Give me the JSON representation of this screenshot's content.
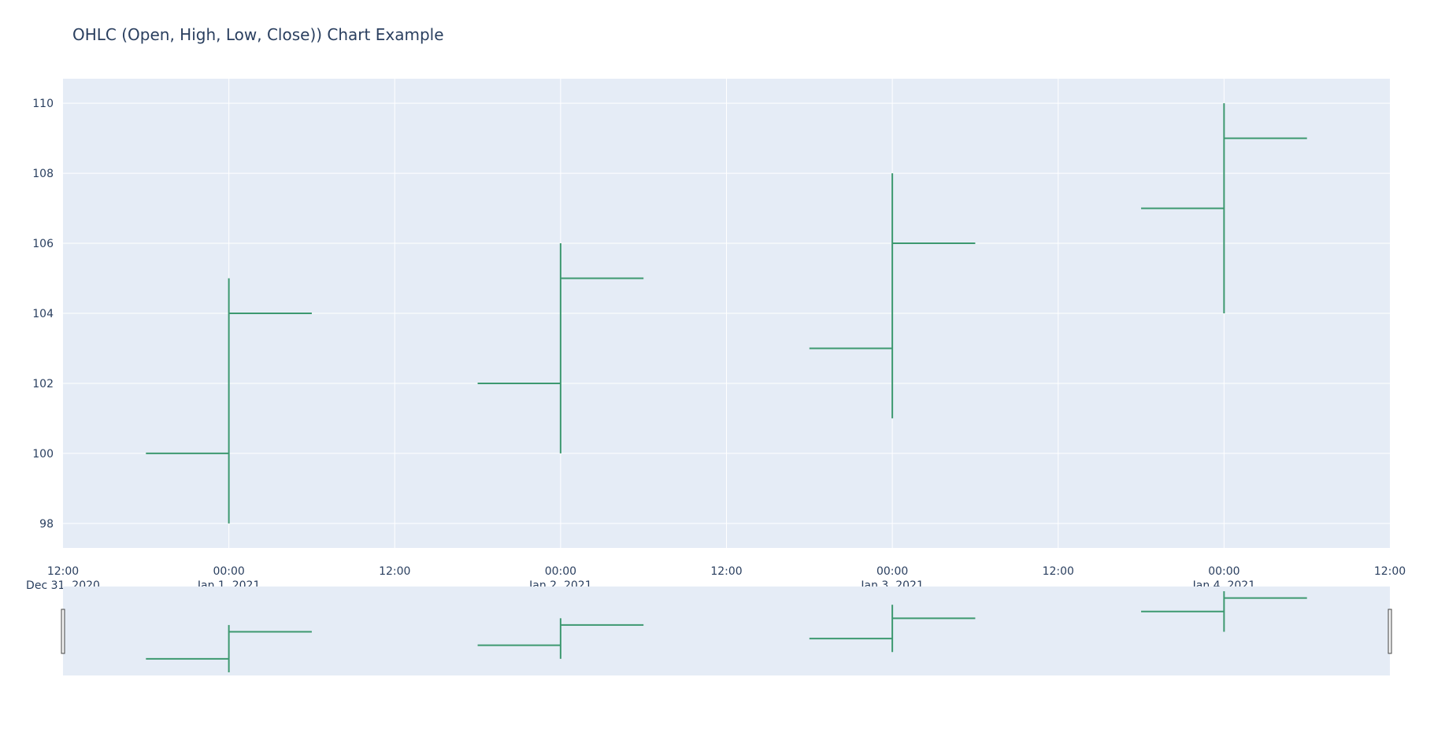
{
  "chart_data": {
    "type": "ohlc",
    "title": "OHLC (Open, High, Low, Close)) Chart Example",
    "x": [
      "2021-01-01",
      "2021-01-02",
      "2021-01-03",
      "2021-01-04"
    ],
    "open": [
      100,
      102,
      103,
      107
    ],
    "high": [
      105,
      106,
      108,
      110
    ],
    "low": [
      98,
      100,
      101,
      104
    ],
    "close": [
      104,
      105,
      106,
      109
    ],
    "xlim": [
      "2020-12-31 12:00",
      "2021-01-04 12:00"
    ],
    "ylim": [
      97.3,
      110.7
    ],
    "ytick_values": [
      98,
      100,
      102,
      104,
      106,
      108,
      110
    ],
    "ytick_labels": [
      "98",
      "100",
      "102",
      "104",
      "106",
      "108",
      "110"
    ],
    "xtick_labels": [
      {
        "time": "12:00",
        "date": "Dec 31, 2020"
      },
      {
        "time": "00:00",
        "date": "Jan 1, 2021"
      },
      {
        "time": "12:00",
        "date": ""
      },
      {
        "time": "00:00",
        "date": "Jan 2, 2021"
      },
      {
        "time": "12:00",
        "date": ""
      },
      {
        "time": "00:00",
        "date": "Jan 3, 2021"
      },
      {
        "time": "12:00",
        "date": ""
      },
      {
        "time": "00:00",
        "date": "Jan 4, 2021"
      },
      {
        "time": "12:00",
        "date": ""
      }
    ],
    "increasing_color": "#3d9970",
    "plot_bg": "#e5ecf6",
    "grid": true,
    "rangeslider": true,
    "legend": "none"
  }
}
